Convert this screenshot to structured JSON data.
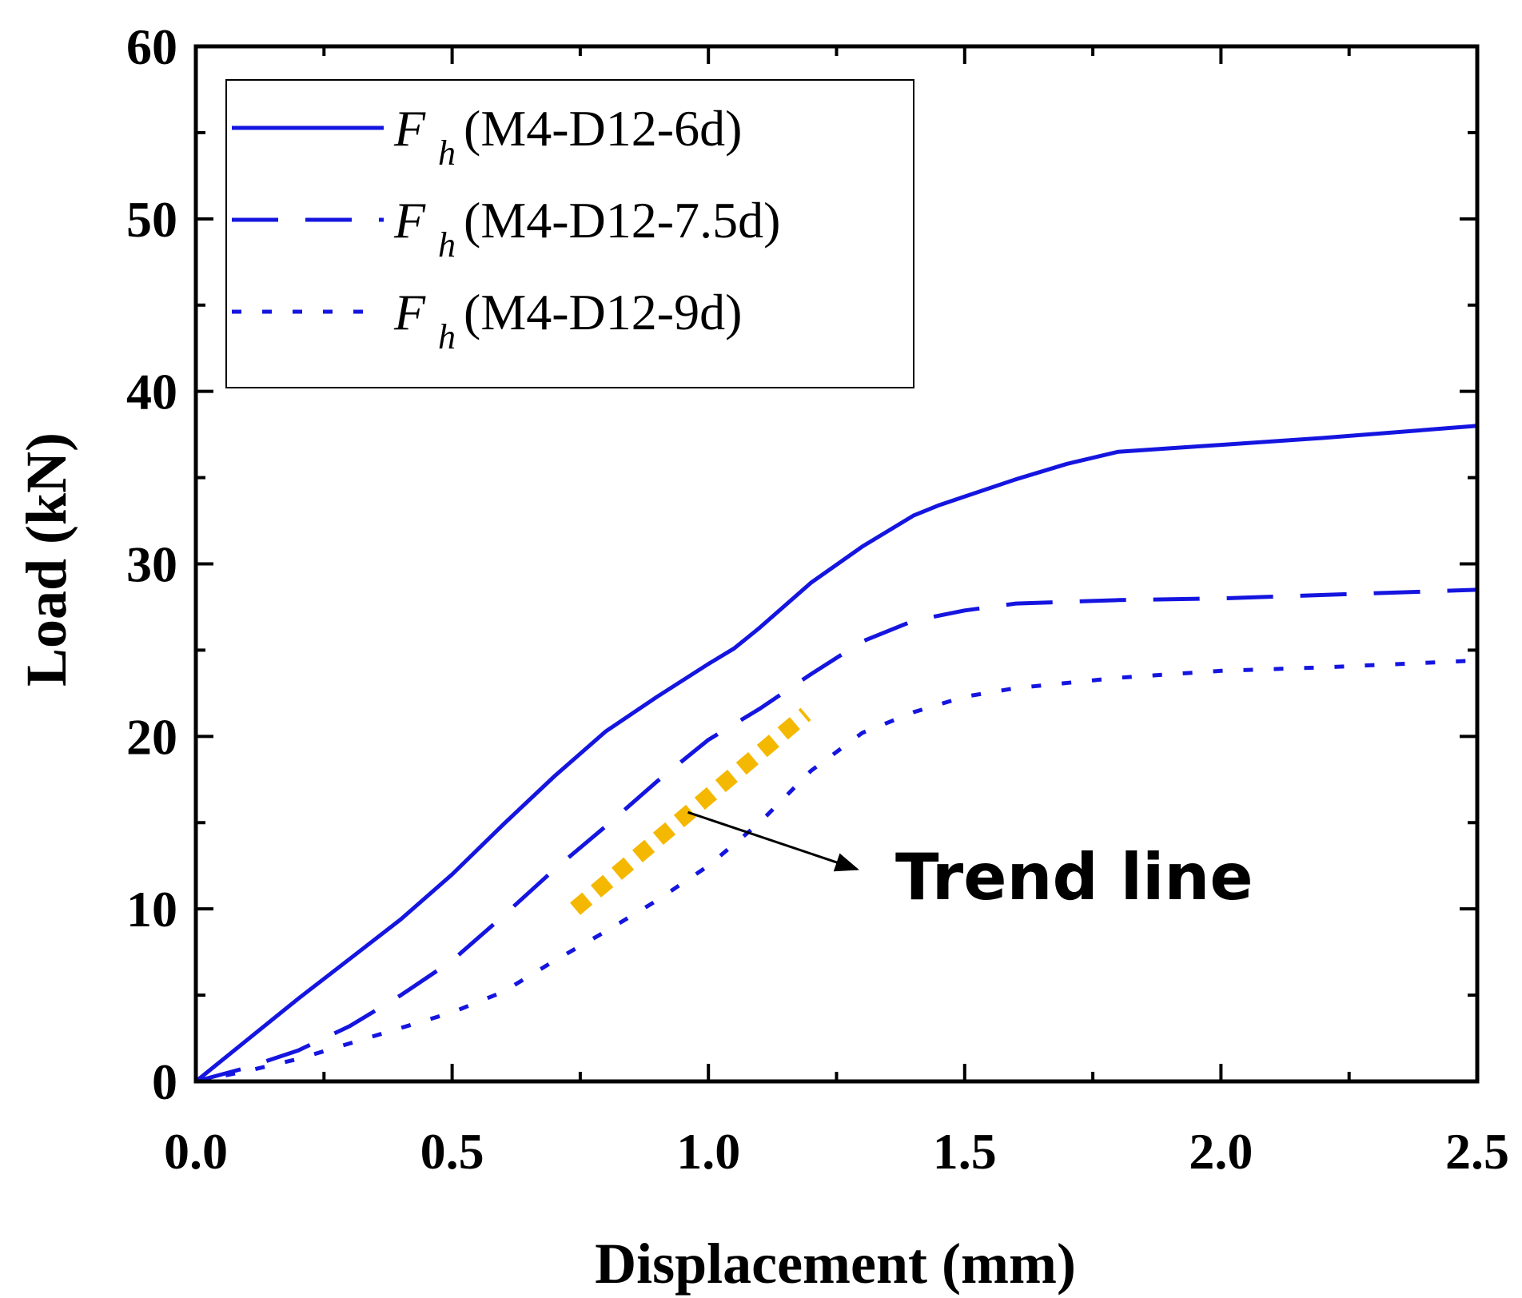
{
  "chart_data": {
    "type": "line",
    "xlabel": "Displacement (mm)",
    "ylabel": "Load (kN)",
    "xlim": [
      0,
      2.5
    ],
    "ylim": [
      0,
      60
    ],
    "x_ticks": [
      "0.0",
      "0.5",
      "1.0",
      "1.5",
      "2.0",
      "2.5"
    ],
    "y_ticks": [
      "0",
      "10",
      "20",
      "30",
      "40",
      "50",
      "60"
    ],
    "legend_position": "top-left",
    "series": [
      {
        "name": "M4-D12-6d",
        "symbol": "F",
        "subscript": "h",
        "label_suffix": " (M4-D12-6d)",
        "style": "solid",
        "color": "#1515e0",
        "x": [
          0,
          0.1,
          0.2,
          0.3,
          0.4,
          0.5,
          0.6,
          0.7,
          0.8,
          0.9,
          1.0,
          1.05,
          1.1,
          1.2,
          1.3,
          1.4,
          1.45,
          1.5,
          1.6,
          1.7,
          1.8,
          1.9,
          2.0,
          2.2,
          2.5
        ],
        "y": [
          0,
          2.4,
          4.8,
          7.1,
          9.4,
          12.0,
          14.9,
          17.7,
          20.3,
          22.3,
          24.2,
          25.1,
          26.3,
          28.9,
          31.0,
          32.8,
          33.4,
          33.9,
          34.9,
          35.8,
          36.5,
          36.7,
          36.9,
          37.3,
          38.0
        ]
      },
      {
        "name": "M4-D12-7.5d",
        "symbol": "F",
        "subscript": "h",
        "label_suffix": " (M4-D12-7.5d)",
        "style": "dash",
        "color": "#1515e0",
        "x": [
          0,
          0.1,
          0.2,
          0.3,
          0.4,
          0.5,
          0.6,
          0.7,
          0.8,
          0.9,
          1.0,
          1.1,
          1.2,
          1.3,
          1.4,
          1.5,
          1.6,
          1.8,
          2.0,
          2.2,
          2.5
        ],
        "y": [
          0,
          0.8,
          1.8,
          3.2,
          5.0,
          7.0,
          9.6,
          12.3,
          14.8,
          17.4,
          19.8,
          21.6,
          23.6,
          25.5,
          26.7,
          27.3,
          27.7,
          27.9,
          28.0,
          28.2,
          28.5
        ]
      },
      {
        "name": "M4-D12-9d",
        "symbol": "F",
        "subscript": "h",
        "label_suffix": " (M4-D12-9d)",
        "style": "dot",
        "color": "#1515e0",
        "x": [
          0,
          0.1,
          0.2,
          0.3,
          0.4,
          0.5,
          0.6,
          0.7,
          0.8,
          0.9,
          1.0,
          1.1,
          1.2,
          1.3,
          1.4,
          1.5,
          1.6,
          1.8,
          2.0,
          2.2,
          2.5
        ],
        "y": [
          0,
          0.6,
          1.3,
          2.2,
          3.1,
          4.0,
          5.2,
          7.0,
          8.7,
          10.5,
          12.5,
          15.0,
          18.0,
          20.2,
          21.4,
          22.3,
          22.8,
          23.4,
          23.8,
          24.0,
          24.4
        ]
      }
    ],
    "trend_line": {
      "color": "#f5b800",
      "x": [
        0.74,
        1.19
      ],
      "y": [
        10.0,
        21.3
      ]
    },
    "annotation": {
      "text": "Trend line",
      "arrow_from": [
        0.96,
        15.6
      ],
      "arrow_to": [
        1.29,
        12.3
      ]
    }
  }
}
